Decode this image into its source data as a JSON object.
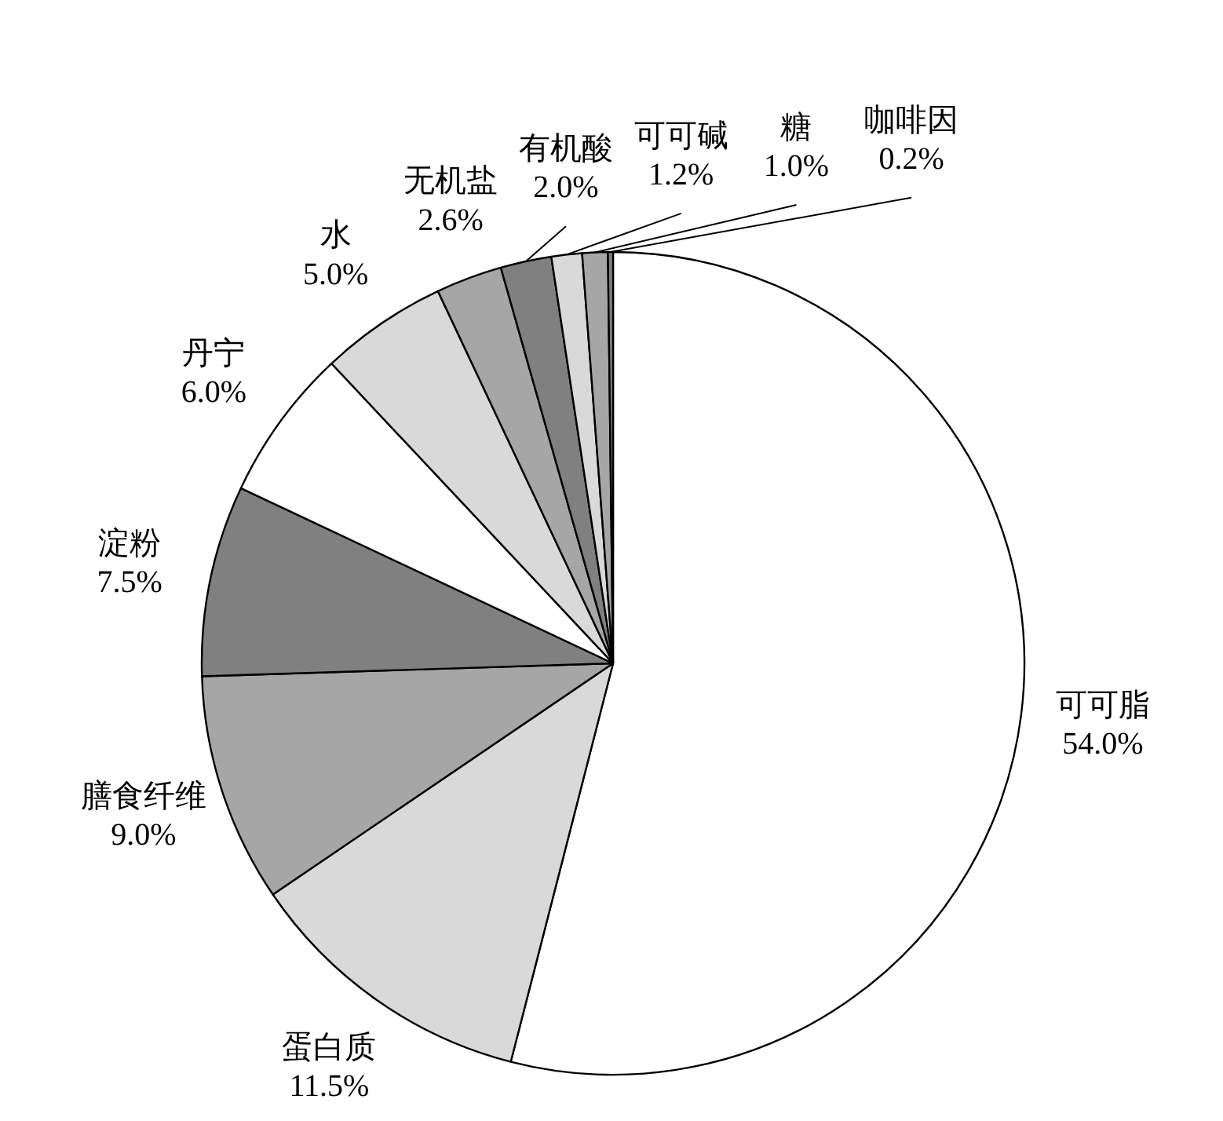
{
  "chart_data": {
    "type": "pie",
    "categories": [
      "可可脂",
      "蛋白质",
      "膳食纤维",
      "淀粉",
      "丹宁",
      "水",
      "无机盐",
      "有机酸",
      "可可碱",
      "糖",
      "咖啡因"
    ],
    "values": [
      54.0,
      11.5,
      9.0,
      7.5,
      6.0,
      5.0,
      2.6,
      2.0,
      1.2,
      1.0,
      0.2
    ],
    "value_labels": [
      "54.0%",
      "11.5%",
      "9.0%",
      "7.5%",
      "6.0%",
      "5.0%",
      "2.6%",
      "2.0%",
      "1.2%",
      "1.0%",
      "0.2%"
    ],
    "colors": [
      "#ffffff",
      "#d9d9d9",
      "#a6a6a6",
      "#808080",
      "#ffffff",
      "#d9d9d9",
      "#a6a6a6",
      "#808080",
      "#d9d9d9",
      "#a6a6a6",
      "#808080"
    ]
  }
}
